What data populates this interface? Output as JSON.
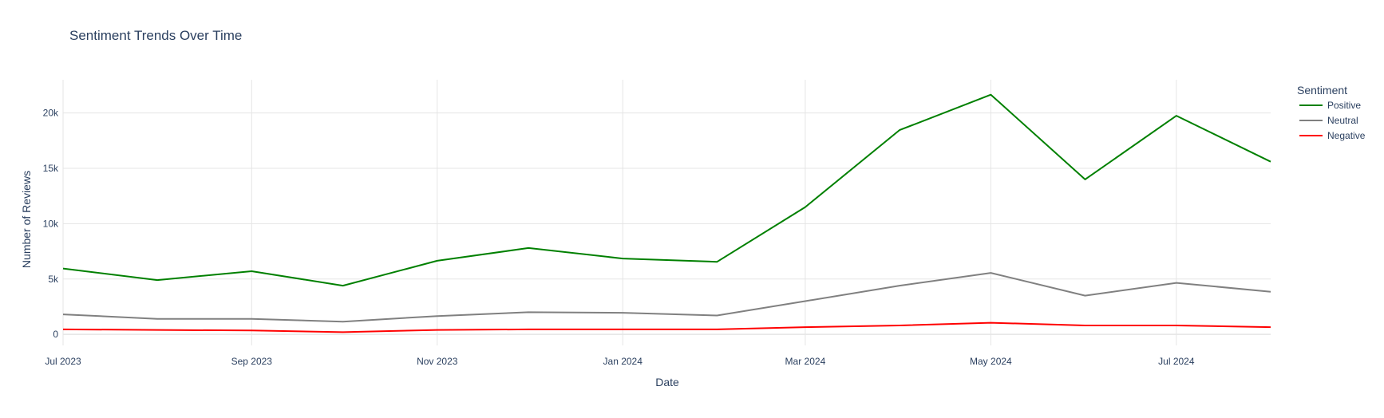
{
  "chart_data": {
    "type": "line",
    "title": "Sentiment Trends Over Time",
    "xlabel": "Date",
    "ylabel": "Number of Reviews",
    "x": [
      "2023-07-01",
      "2023-08-01",
      "2023-09-01",
      "2023-10-01",
      "2023-11-01",
      "2023-12-01",
      "2024-01-01",
      "2024-02-01",
      "2024-03-01",
      "2024-04-01",
      "2024-05-01",
      "2024-06-01",
      "2024-07-01",
      "2024-08-01"
    ],
    "x_tick_labels": [
      "Jul 2023",
      "Sep 2023",
      "Nov 2023",
      "Jan 2024",
      "Mar 2024",
      "May 2024",
      "Jul 2024"
    ],
    "x_tick_values": [
      "2023-07-01",
      "2023-09-01",
      "2023-11-01",
      "2024-01-01",
      "2024-03-01",
      "2024-05-01",
      "2024-07-01"
    ],
    "y_tick_labels": [
      "0",
      "5k",
      "10k",
      "15k",
      "20k"
    ],
    "y_tick_values": [
      0,
      5000,
      10000,
      15000,
      20000
    ],
    "ylim": [
      -1000,
      23000
    ],
    "grid": true,
    "legend_title": "Sentiment",
    "legend_placement": "top-right",
    "series": [
      {
        "name": "Positive",
        "color": "#008000",
        "values": [
          5950,
          4900,
          5700,
          4400,
          6650,
          7800,
          6850,
          6550,
          11500,
          18450,
          21650,
          14000,
          19750,
          15600
        ]
      },
      {
        "name": "Neutral",
        "color": "#808080",
        "values": [
          1800,
          1400,
          1400,
          1150,
          1650,
          2000,
          1950,
          1700,
          3000,
          4400,
          5550,
          3500,
          4650,
          3850
        ]
      },
      {
        "name": "Negative",
        "color": "#ff0000",
        "values": [
          450,
          400,
          350,
          200,
          400,
          450,
          450,
          450,
          650,
          800,
          1050,
          800,
          800,
          650
        ]
      }
    ]
  }
}
